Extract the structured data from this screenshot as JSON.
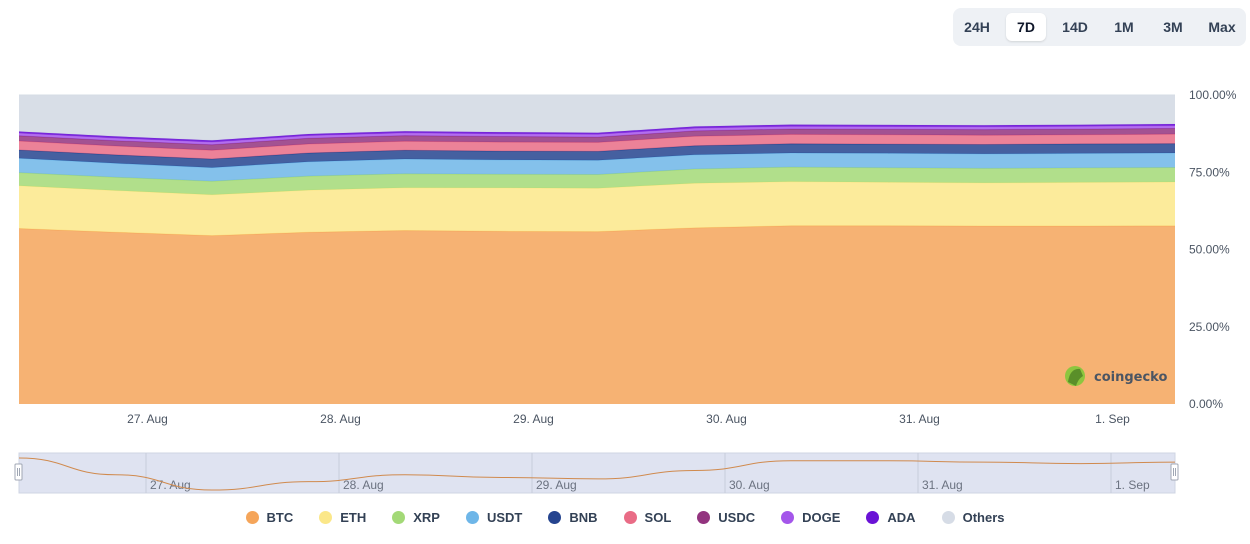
{
  "range_selector": {
    "options": [
      "24H",
      "7D",
      "14D",
      "1M",
      "3M",
      "Max"
    ],
    "active": "7D"
  },
  "watermark": "coingecko",
  "chart_data": {
    "type": "area",
    "stacking": "percent",
    "y_ticks": [
      "0.00%",
      "25.00%",
      "50.00%",
      "75.00%",
      "100.00%"
    ],
    "ylim": [
      0,
      100
    ],
    "x_ticks": [
      "27. Aug",
      "28. Aug",
      "29. Aug",
      "30. Aug",
      "31. Aug",
      "1. Sep"
    ],
    "x": [
      "26 Aug 12:00",
      "27 Aug 00:00",
      "27 Aug 12:00",
      "28 Aug 00:00",
      "28 Aug 12:00",
      "29 Aug 00:00",
      "29 Aug 12:00",
      "30 Aug 00:00",
      "30 Aug 12:00",
      "31 Aug 00:00",
      "31 Aug 12:00",
      "1 Sep 00:00",
      "1 Sep 12:00"
    ],
    "series": [
      {
        "name": "BTC",
        "color": "#f5a55a",
        "values": [
          56.8,
          55.6,
          54.5,
          55.1,
          55.6,
          55.4,
          55.3,
          55.9,
          56.6,
          56.6,
          56.5,
          56.4,
          56.5
        ]
      },
      {
        "name": "ETH",
        "color": "#fbe789",
        "values": [
          13.8,
          13.5,
          13.2,
          13.5,
          13.7,
          13.9,
          13.9,
          14.2,
          14.0,
          13.8,
          13.7,
          13.8,
          13.9
        ]
      },
      {
        "name": "XRP",
        "color": "#a3d977",
        "values": [
          4.3,
          4.3,
          4.4,
          4.5,
          4.5,
          4.4,
          4.4,
          4.5,
          4.6,
          4.6,
          4.6,
          4.6,
          4.6
        ]
      },
      {
        "name": "USDT",
        "color": "#6eb6e8",
        "values": [
          4.6,
          4.5,
          4.4,
          4.6,
          4.7,
          4.6,
          4.6,
          4.5,
          4.5,
          4.6,
          4.6,
          4.6,
          4.6
        ]
      },
      {
        "name": "BNB",
        "color": "#25448f",
        "values": [
          2.7,
          2.7,
          2.8,
          2.8,
          2.8,
          2.8,
          2.8,
          2.9,
          2.9,
          2.9,
          3.0,
          3.0,
          3.0
        ]
      },
      {
        "name": "SOL",
        "color": "#e96c86",
        "values": [
          2.9,
          2.9,
          2.8,
          2.9,
          2.9,
          2.9,
          2.9,
          3.0,
          3.0,
          3.0,
          2.9,
          2.9,
          3.0
        ]
      },
      {
        "name": "USDC",
        "color": "#93347f",
        "values": [
          1.7,
          1.7,
          1.8,
          1.8,
          1.8,
          1.8,
          1.7,
          1.7,
          1.7,
          1.7,
          1.8,
          1.8,
          1.8
        ]
      },
      {
        "name": "DOGE",
        "color": "#a456ea",
        "values": [
          0.9,
          0.9,
          0.9,
          0.9,
          0.9,
          0.9,
          0.9,
          0.9,
          0.9,
          0.9,
          0.9,
          0.9,
          0.9
        ]
      },
      {
        "name": "ADA",
        "color": "#6a12d6",
        "values": [
          0.5,
          0.5,
          0.5,
          0.5,
          0.5,
          0.5,
          0.5,
          0.5,
          0.5,
          0.5,
          0.5,
          0.5,
          0.5
        ]
      },
      {
        "name": "Others",
        "color": "#d6dce6",
        "values": [
          11.8,
          13.4,
          14.7,
          12.5,
          11.6,
          11.9,
          12.1,
          10.0,
          9.4,
          9.5,
          9.6,
          9.4,
          9.2
        ]
      }
    ],
    "navigator_series": "BTC",
    "legend_position": "bottom"
  }
}
